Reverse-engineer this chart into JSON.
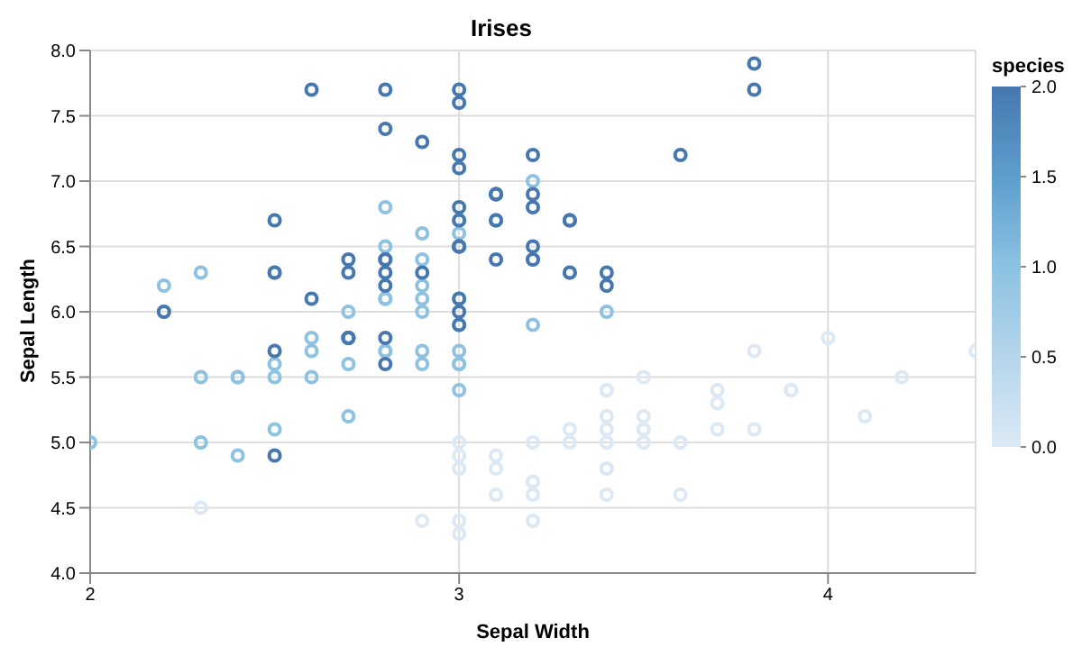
{
  "chart_data": {
    "type": "scatter",
    "title": "Irises",
    "xlabel": "Sepal Width",
    "ylabel": "Sepal Length",
    "clabel": "species",
    "x": [
      3.5,
      3.0,
      3.2,
      3.1,
      3.6,
      3.9,
      3.4,
      3.4,
      2.9,
      3.1,
      3.7,
      3.4,
      3.0,
      3.0,
      4.0,
      4.4,
      3.9,
      3.5,
      3.8,
      3.8,
      3.4,
      3.7,
      3.6,
      3.3,
      3.4,
      3.0,
      3.4,
      3.5,
      3.4,
      3.2,
      3.1,
      3.4,
      4.1,
      4.2,
      3.2,
      3.5,
      3.0,
      3.4,
      3.5,
      2.3,
      3.2,
      3.5,
      3.0,
      3.2,
      3.7,
      3.3,
      3.2,
      3.2,
      3.1,
      2.3,
      2.8,
      2.8,
      3.3,
      2.4,
      2.9,
      2.7,
      2.0,
      3.0,
      2.2,
      2.9,
      2.9,
      3.1,
      3.0,
      2.7,
      2.2,
      2.5,
      3.2,
      2.8,
      2.5,
      2.8,
      2.9,
      3.0,
      2.8,
      3.0,
      2.9,
      2.6,
      2.4,
      2.4,
      2.7,
      2.7,
      3.0,
      3.4,
      3.1,
      2.3,
      3.0,
      2.5,
      2.6,
      3.0,
      2.6,
      2.3,
      2.7,
      3.0,
      2.9,
      2.9,
      2.5,
      2.8,
      3.3,
      2.7,
      3.0,
      2.9,
      3.0,
      3.0,
      2.5,
      2.9,
      2.5,
      3.6,
      3.2,
      2.7,
      3.0,
      2.5,
      2.8,
      3.2,
      3.0,
      3.8,
      2.6,
      2.2,
      3.2,
      2.8,
      2.8,
      2.7,
      3.3,
      3.2,
      2.8,
      3.0,
      2.8,
      3.0,
      2.8,
      3.8,
      2.8,
      2.8,
      2.6,
      3.0,
      3.4,
      3.1,
      3.0,
      3.1,
      3.1,
      3.1,
      2.7,
      3.2,
      3.3,
      3.0,
      2.5,
      3.0,
      3.4,
      3.0
    ],
    "values": [
      5.1,
      4.9,
      4.7,
      4.6,
      5.0,
      5.4,
      4.6,
      5.0,
      4.4,
      4.9,
      5.4,
      4.8,
      4.8,
      4.3,
      5.8,
      5.7,
      5.4,
      5.1,
      5.7,
      5.1,
      5.4,
      5.1,
      4.6,
      5.1,
      4.8,
      5.0,
      5.0,
      5.2,
      5.2,
      4.7,
      4.8,
      5.4,
      5.2,
      5.5,
      5.0,
      5.5,
      4.4,
      5.1,
      5.0,
      4.5,
      4.4,
      5.0,
      4.8,
      4.6,
      5.3,
      5.0,
      7.0,
      6.4,
      6.9,
      5.5,
      6.5,
      5.7,
      6.3,
      4.9,
      6.6,
      5.2,
      5.0,
      5.9,
      6.0,
      6.1,
      5.6,
      6.7,
      5.6,
      5.8,
      6.2,
      5.6,
      5.9,
      6.1,
      6.3,
      6.1,
      6.4,
      6.6,
      6.8,
      6.7,
      6.0,
      5.7,
      5.5,
      5.5,
      5.8,
      6.0,
      5.4,
      6.0,
      6.7,
      6.3,
      5.6,
      5.5,
      5.5,
      6.1,
      5.8,
      5.0,
      5.6,
      5.7,
      5.7,
      6.2,
      5.1,
      5.7,
      6.3,
      5.8,
      7.1,
      6.3,
      6.5,
      7.6,
      4.9,
      7.3,
      6.7,
      7.2,
      6.5,
      6.4,
      6.8,
      5.7,
      5.8,
      6.4,
      6.5,
      7.7,
      7.7,
      6.0,
      6.9,
      5.6,
      7.7,
      6.3,
      6.7,
      7.2,
      6.2,
      6.1,
      6.4,
      7.2,
      7.4,
      7.9,
      6.4,
      6.3,
      6.1,
      7.7,
      6.3,
      6.4,
      6.0,
      6.9,
      6.7,
      6.9,
      5.8,
      6.8,
      6.7,
      6.7,
      6.3,
      6.5,
      6.2,
      5.9
    ],
    "cvalues": [
      0,
      0,
      0,
      0,
      0,
      0,
      0,
      0,
      0,
      0,
      0,
      0,
      0,
      0,
      0,
      0,
      0,
      0,
      0,
      0,
      0,
      0,
      0,
      0,
      0,
      0,
      0,
      0,
      0,
      0,
      0,
      0,
      0,
      0,
      0,
      0,
      0,
      0,
      0,
      0,
      0,
      0,
      0,
      0,
      0,
      0,
      1,
      1,
      1,
      1,
      1,
      1,
      1,
      1,
      1,
      1,
      1,
      1,
      1,
      1,
      1,
      1,
      1,
      1,
      1,
      1,
      1,
      1,
      1,
      1,
      1,
      1,
      1,
      1,
      1,
      1,
      1,
      1,
      1,
      1,
      1,
      1,
      1,
      1,
      1,
      1,
      1,
      1,
      1,
      1,
      1,
      1,
      1,
      1,
      1,
      1,
      2,
      2,
      2,
      2,
      2,
      2,
      2,
      2,
      2,
      2,
      2,
      2,
      2,
      2,
      2,
      2,
      2,
      2,
      2,
      2,
      2,
      2,
      2,
      2,
      2,
      2,
      2,
      2,
      2,
      2,
      2,
      2,
      2,
      2,
      2,
      2,
      2,
      2,
      2,
      2,
      2,
      2,
      2,
      2,
      2,
      2,
      2,
      2,
      2,
      2
    ],
    "xlim": [
      2,
      4.4
    ],
    "xticks": [
      2,
      3,
      4
    ],
    "ylim": [
      4,
      8
    ],
    "yticks": [
      {
        "value": 4,
        "label": "4.0"
      },
      {
        "value": 4.5,
        "label": "4.5"
      },
      {
        "value": 5,
        "label": "5.0"
      },
      {
        "value": 5.5,
        "label": "5.5"
      },
      {
        "value": 6,
        "label": "6.0"
      },
      {
        "value": 6.5,
        "label": "6.5"
      },
      {
        "value": 7,
        "label": "7.0"
      },
      {
        "value": 7.5,
        "label": "7.5"
      },
      {
        "value": 8,
        "label": "8.0"
      }
    ],
    "clim": [
      0,
      2
    ],
    "cticks": [
      {
        "value": 0,
        "label": "0.0"
      },
      {
        "value": 0.5,
        "label": "0.5"
      },
      {
        "value": 1,
        "label": "1.0"
      },
      {
        "value": 1.5,
        "label": "1.5"
      },
      {
        "value": 2,
        "label": "2.0"
      }
    ],
    "grid": true,
    "marker": "circle"
  }
}
